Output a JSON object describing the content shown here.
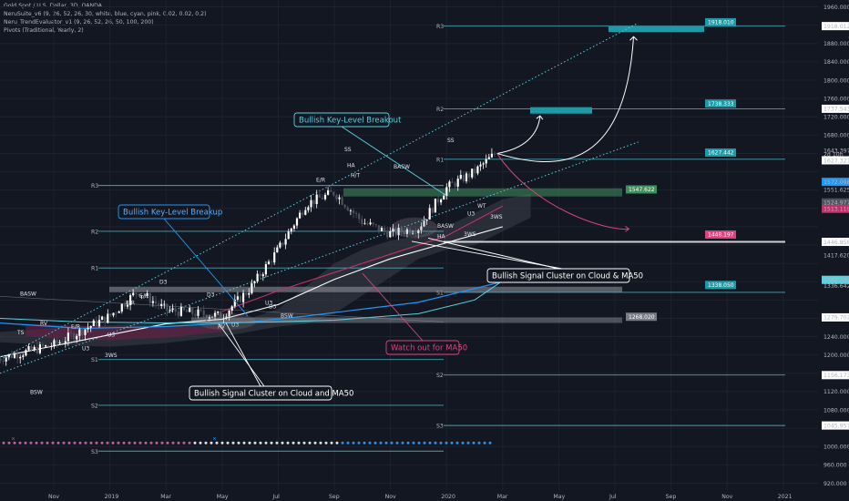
{
  "legend": {
    "symbol": "Gold Spot / U.S. Dollar, 3D, OANDA",
    "indicators": [
      "NeruSuite_v6 (9, 26, 52, 26, 30, white, blue, cyan, pink, 0.02, 0.02, 0.2)",
      "Neru_TrendEvaluator_v1 (9, 26, 52, 26, 50, 100, 200)",
      "Pivots (Traditional, Yearly, 2)"
    ]
  },
  "colors": {
    "background": "#131722",
    "grid": "#1e222d",
    "bull": "#ffffff",
    "bear": "#4c525e",
    "pivot_line": "#5ad0e0",
    "cyan_box": "#1d9aa6",
    "pink": "#d9447e",
    "green_zone": "#3f8f5f",
    "cloud": "#3a3f4a",
    "ma_white": "#ffffff",
    "ma_blue": "#2196f3",
    "ma_cyan": "#5ad0e0",
    "ma_pink": "#c0306a"
  },
  "chart_data": {
    "type": "candlestick",
    "title": "Gold Spot / U.S. Dollar, 3D, OANDA",
    "x_ticks": [
      "Nov",
      "2019",
      "Mar",
      "May",
      "Jul",
      "Sep",
      "Nov",
      "2020",
      "Mar",
      "May",
      "Jul",
      "Sep",
      "Nov",
      "2021"
    ],
    "y_ticks": [
      920,
      960,
      1000,
      1040,
      1080,
      1120,
      1160,
      1200,
      1240,
      1280,
      1320,
      1360,
      1400,
      1440,
      1480,
      1520,
      1560,
      1600,
      1640,
      1680,
      1720,
      1760,
      1800,
      1840,
      1880,
      1920,
      1960
    ],
    "ylim": [
      905,
      1975
    ],
    "price_path": [
      {
        "x": "2018-09",
        "y": 1192
      },
      {
        "x": "2018-11",
        "y": 1222
      },
      {
        "x": "2019-01",
        "y": 1285
      },
      {
        "x": "2019-02",
        "y": 1340
      },
      {
        "x": "2019-03",
        "y": 1298
      },
      {
        "x": "2019-05",
        "y": 1285
      },
      {
        "x": "2019-06",
        "y": 1345
      },
      {
        "x": "2019-07",
        "y": 1430
      },
      {
        "x": "2019-08",
        "y": 1530
      },
      {
        "x": "2019-09",
        "y": 1555
      },
      {
        "x": "2019-10",
        "y": 1490
      },
      {
        "x": "2019-11",
        "y": 1465
      },
      {
        "x": "2019-12",
        "y": 1478
      },
      {
        "x": "2020-01",
        "y": 1565
      },
      {
        "x": "2020-02",
        "y": 1600
      },
      {
        "x": "2020-02-24",
        "y": 1643
      }
    ],
    "price_tags": [
      {
        "value": "1960.000",
        "y": 1960,
        "style": "plain"
      },
      {
        "value": "1918.012",
        "y": 1918,
        "style": "white"
      },
      {
        "value": "1880.000",
        "y": 1880,
        "style": "plain"
      },
      {
        "value": "1840.000",
        "y": 1840,
        "style": "plain"
      },
      {
        "value": "1800.000",
        "y": 1800,
        "style": "plain"
      },
      {
        "value": "1760.000",
        "y": 1760,
        "style": "plain"
      },
      {
        "value": "1737.543",
        "y": 1737.5,
        "style": "white"
      },
      {
        "value": "1720.000",
        "y": 1720,
        "style": "plain"
      },
      {
        "value": "1680.000",
        "y": 1680,
        "style": "plain"
      },
      {
        "value": "1643.397",
        "y": 1646,
        "style": "plain"
      },
      {
        "value": "2d 10h",
        "y": 1638,
        "style": "plain"
      },
      {
        "value": "1627.327",
        "y": 1625,
        "style": "white"
      },
      {
        "value": "1572.098",
        "y": 1578,
        "style": "blue"
      },
      {
        "value": "1551.625",
        "y": 1561,
        "style": "plain"
      },
      {
        "value": "1524.977",
        "y": 1533,
        "style": "darkgray"
      },
      {
        "value": "1513.119",
        "y": 1519,
        "style": "pink"
      },
      {
        "value": "1446.858",
        "y": 1446.9,
        "style": "white"
      },
      {
        "value": "1417.620",
        "y": 1418,
        "style": "plain"
      },
      {
        "value": "1363.785",
        "y": 1364,
        "style": "cyan"
      },
      {
        "value": "1336.642",
        "y": 1351,
        "style": "plain"
      },
      {
        "value": "1279.702",
        "y": 1282,
        "style": "white"
      },
      {
        "value": "1240.000",
        "y": 1240,
        "style": "plain"
      },
      {
        "value": "1200.000",
        "y": 1200,
        "style": "plain"
      },
      {
        "value": "1156.173",
        "y": 1156,
        "style": "white"
      },
      {
        "value": "1120.000",
        "y": 1120,
        "style": "plain"
      },
      {
        "value": "1080.000",
        "y": 1080,
        "style": "plain"
      },
      {
        "value": "1045.957",
        "y": 1046,
        "style": "white"
      },
      {
        "value": "1000.000",
        "y": 1000,
        "style": "plain"
      },
      {
        "value": "960.000",
        "y": 960,
        "style": "plain"
      },
      {
        "value": "920.000",
        "y": 920,
        "style": "plain"
      }
    ],
    "pivot_lines": [
      {
        "label": "R3",
        "value": 1918.012,
        "segment": "2020"
      },
      {
        "label": "R2",
        "value": 1737.543,
        "segment": "2020"
      },
      {
        "label": "R1",
        "value": 1627.327,
        "segment": "2020"
      },
      {
        "label": "S1",
        "value": 1336.642,
        "segment": "2020"
      },
      {
        "label": "S2",
        "value": 1156.173,
        "segment": "2020"
      },
      {
        "label": "S3",
        "value": 1045.957,
        "segment": "2020"
      },
      {
        "label": "R3",
        "value": 1570,
        "segment": "2019"
      },
      {
        "label": "R2",
        "value": 1470,
        "segment": "2019"
      },
      {
        "label": "R1",
        "value": 1390,
        "segment": "2019"
      },
      {
        "label": "S1",
        "value": 1190,
        "segment": "2019"
      },
      {
        "label": "S2",
        "value": 1090,
        "segment": "2019"
      },
      {
        "label": "S3",
        "value": 990,
        "segment": "2019"
      }
    ],
    "target_boxes": [
      {
        "value": "1918.010",
        "from": 1905,
        "to": 1918
      },
      {
        "value": "1738.333",
        "from": 1727,
        "to": 1741
      },
      {
        "value": "1627.442",
        "from": 1620,
        "to": 1634
      },
      {
        "value": "1547.622",
        "from": 1540,
        "to": 1553
      },
      {
        "value": "1448.197",
        "from": 1441,
        "to": 1455
      },
      {
        "value": "1338.050",
        "from": 1331,
        "to": 1345
      },
      {
        "value": "1268.020",
        "from": 1262,
        "to": 1275
      }
    ],
    "annotations": [
      "Bullish Key-Level Breakout",
      "Bullish Key-Level Breakup",
      "Bullish Signal Cluster on Cloud & MA50",
      "Bullish Signal Cluster on Cloud and MA50",
      "Watch out for MA50"
    ],
    "signal_labels": [
      "BASW",
      "SS",
      "HA",
      "BASW",
      "E/R",
      "H/T",
      "TS",
      "RV",
      "E/R",
      "E/R",
      "E/R",
      "D3",
      "D3",
      "U3",
      "U3",
      "3WS",
      "BSW",
      "BSW",
      "D3",
      "RV",
      "U3",
      "U3",
      "SS",
      "3WS",
      "U3",
      "3WS",
      "HA",
      "BASW",
      "WT"
    ]
  }
}
